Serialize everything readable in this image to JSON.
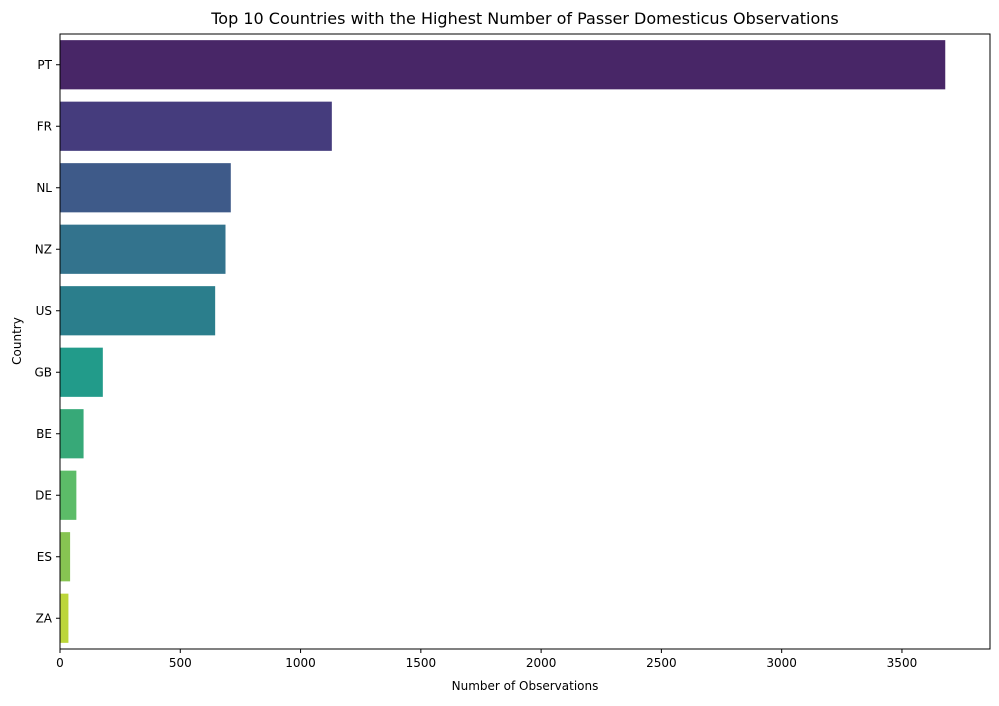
{
  "chart_data": {
    "type": "bar",
    "orientation": "horizontal",
    "title": "Top 10 Countries with the Highest Number of Passer Domesticus Observations",
    "xlabel": "Number of Observations",
    "ylabel": "Country",
    "categories": [
      "PT",
      "FR",
      "NL",
      "NZ",
      "US",
      "GB",
      "BE",
      "DE",
      "ES",
      "ZA"
    ],
    "values": [
      3680,
      1130,
      710,
      688,
      645,
      178,
      98,
      68,
      42,
      35
    ],
    "xlim": [
      0,
      3866
    ],
    "xticks": [
      "0",
      "500",
      "1000",
      "1500",
      "2000",
      "2500",
      "3000",
      "3500"
    ],
    "grid": false,
    "legend": "none",
    "colors": [
      "#482667",
      "#453c7d",
      "#3e5a89",
      "#33738d",
      "#2b7e8c",
      "#229b8a",
      "#37a978",
      "#5cbc68",
      "#87c452",
      "#bcd63a"
    ]
  }
}
